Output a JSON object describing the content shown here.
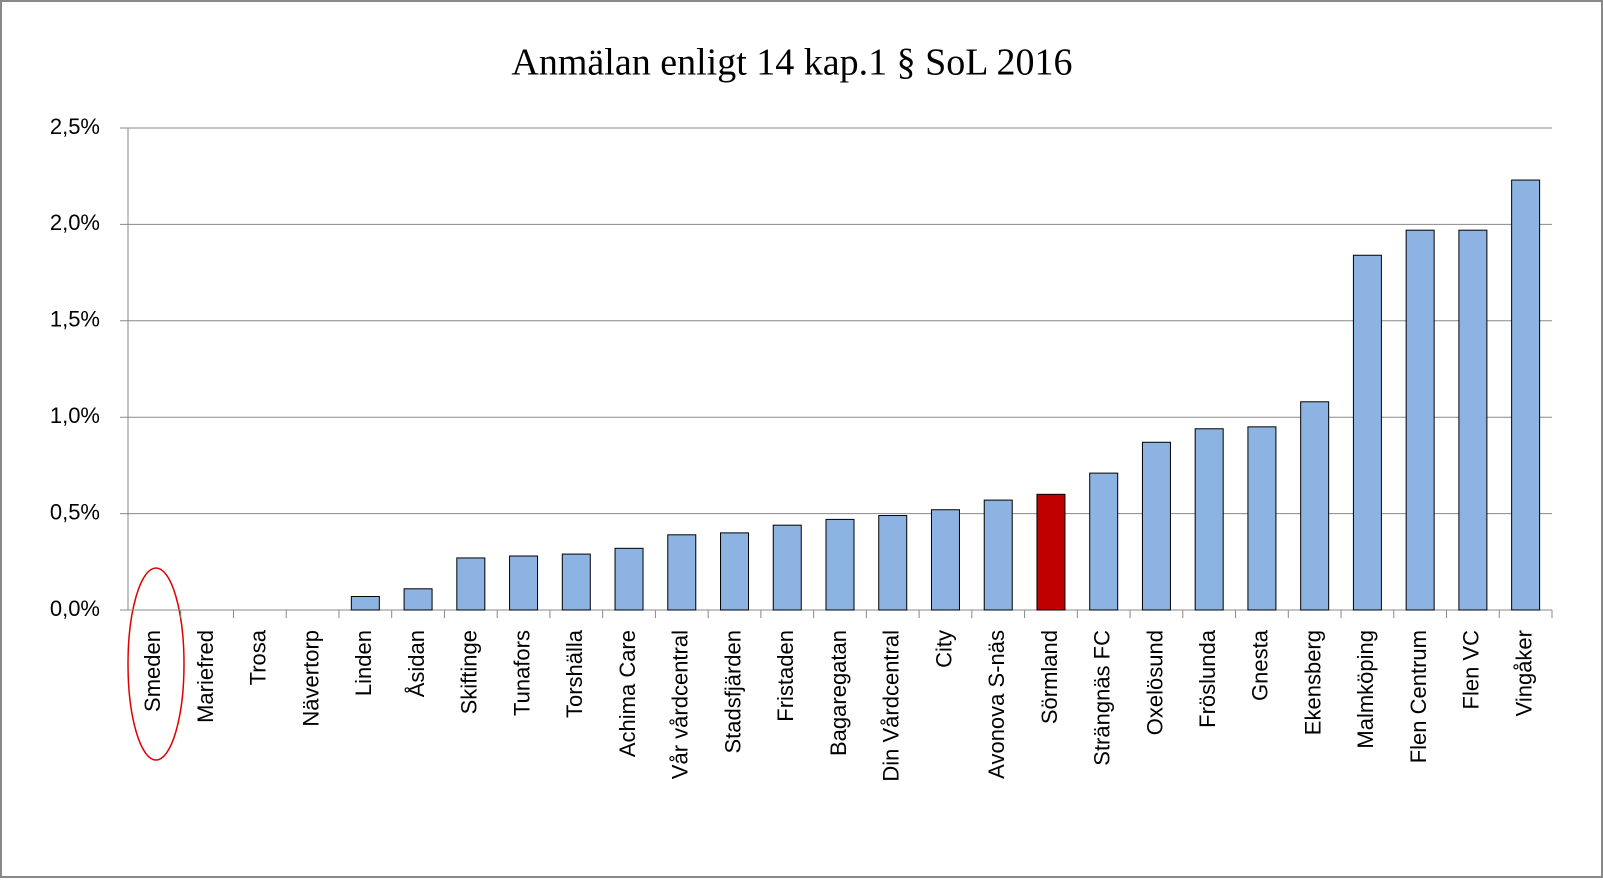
{
  "chart_data": {
    "type": "bar",
    "title": "Anmälan  enligt  14 kap.1  § SoL 2016",
    "categories": [
      "Smeden",
      "Mariefred",
      "Trosa",
      "Nävertorp",
      "Linden",
      "Åsidan",
      "Skiftinge",
      "Tunafors",
      "Torshälla",
      "Achima Care",
      "Vår vårdcentral",
      "Stadsfjärden",
      "Fristaden",
      "Bagaregatan",
      "Din Vårdcentral",
      "City",
      "Avonova S-näs",
      "Sörmland",
      "Strängnäs FC",
      "Oxelösund",
      "Fröslunda",
      "Gnesta",
      "Ekensberg",
      "Malmköping",
      "Flen Centrum",
      "Flen VC",
      "Vingåker"
    ],
    "values": [
      0,
      0,
      0,
      0,
      0.07,
      0.11,
      0.27,
      0.28,
      0.29,
      0.32,
      0.39,
      0.4,
      0.44,
      0.47,
      0.49,
      0.52,
      0.57,
      0.6,
      0.71,
      0.87,
      0.94,
      0.95,
      1.08,
      1.84,
      1.97,
      1.97,
      2.23
    ],
    "colors": [
      "#8db3e2",
      "#8db3e2",
      "#8db3e2",
      "#8db3e2",
      "#8db3e2",
      "#8db3e2",
      "#8db3e2",
      "#8db3e2",
      "#8db3e2",
      "#8db3e2",
      "#8db3e2",
      "#8db3e2",
      "#8db3e2",
      "#8db3e2",
      "#8db3e2",
      "#8db3e2",
      "#8db3e2",
      "#c00000",
      "#8db3e2",
      "#8db3e2",
      "#8db3e2",
      "#8db3e2",
      "#8db3e2",
      "#8db3e2",
      "#8db3e2",
      "#8db3e2",
      "#8db3e2"
    ],
    "ylim": [
      0,
      2.5
    ],
    "yticks": [
      {
        "value": 0,
        "label": "0,0%"
      },
      {
        "value": 0.5,
        "label": "0,5%"
      },
      {
        "value": 1,
        "label": "1,0%"
      },
      {
        "value": 1.5,
        "label": "1,5%"
      },
      {
        "value": 2,
        "label": "2,0%"
      },
      {
        "value": 2.5,
        "label": "2,5%"
      }
    ],
    "grid": true
  }
}
